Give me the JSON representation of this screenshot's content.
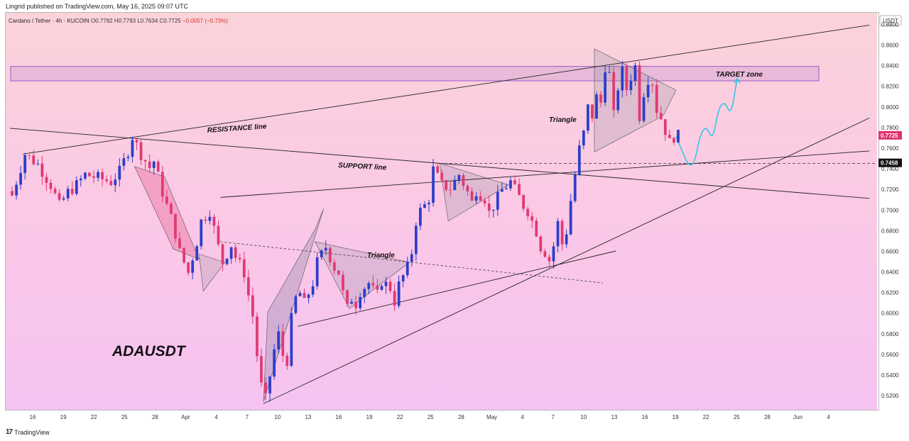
{
  "header": {
    "publisher": "Lingrid published on TradingView.com, May 16, 2025 09:07 UTC"
  },
  "symbol": {
    "line": "Cardano / Tether · 4h · KUCOIN",
    "open": "O0.7782",
    "high": "H0.7793",
    "low": "L0.7634",
    "close": "C0.7725",
    "change": "−0.0057 (−0.73%)",
    "ticker": "ADAUSDT",
    "currency": "USDT"
  },
  "footer": {
    "brand": "TradingView"
  },
  "colors": {
    "bull": "#2b3ec9",
    "bear": "#e03a72",
    "price_tag": "#e0336e",
    "level_tag": "#111111",
    "forecast": "#33c6e6",
    "target_zone": "#9b59c6"
  },
  "chart_data": {
    "type": "candlestick",
    "y_axis": {
      "ticks": [
        0.52,
        0.54,
        0.56,
        0.58,
        0.6,
        0.62,
        0.64,
        0.66,
        0.68,
        0.7,
        0.72,
        0.74,
        0.76,
        0.78,
        0.8,
        0.82,
        0.84,
        0.86,
        0.88
      ],
      "range": [
        0.507,
        0.892
      ]
    },
    "x_axis": {
      "ticks": [
        "16",
        "19",
        "22",
        "25",
        "28",
        "Apr",
        "4",
        "7",
        "10",
        "13",
        "16",
        "19",
        "22",
        "25",
        "28",
        "May",
        "4",
        "7",
        "10",
        "13",
        "16",
        "19",
        "22",
        "25",
        "28",
        "Jun",
        "4"
      ]
    },
    "last_price": "0.7725",
    "level_price": "0.7458",
    "annotations": [
      {
        "text": "RESISTANCE line"
      },
      {
        "text": "SUPPORT line"
      },
      {
        "text": "Triangle"
      },
      {
        "text": "Triangle"
      },
      {
        "text": "TARGET zone"
      }
    ],
    "target_zone": [
      0.826,
      0.84
    ],
    "price_path": [
      [
        0,
        0.715
      ],
      [
        3,
        0.755
      ],
      [
        6,
        0.745
      ],
      [
        9,
        0.725
      ],
      [
        11,
        0.705
      ],
      [
        13,
        0.718
      ],
      [
        15,
        0.725
      ],
      [
        17,
        0.735
      ],
      [
        20,
        0.732
      ],
      [
        23,
        0.728
      ],
      [
        25,
        0.738
      ],
      [
        27,
        0.758
      ],
      [
        28,
        0.772
      ],
      [
        30,
        0.755
      ],
      [
        32,
        0.742
      ],
      [
        33,
        0.748
      ],
      [
        35,
        0.718
      ],
      [
        36,
        0.705
      ],
      [
        37,
        0.693
      ],
      [
        38,
        0.678
      ],
      [
        39,
        0.66
      ],
      [
        40,
        0.65
      ],
      [
        41,
        0.64
      ],
      [
        43,
        0.67
      ],
      [
        44,
        0.69
      ],
      [
        46,
        0.7
      ],
      [
        48,
        0.665
      ],
      [
        49,
        0.65
      ],
      [
        51,
        0.667
      ],
      [
        52,
        0.655
      ],
      [
        53,
        0.648
      ],
      [
        54,
        0.64
      ],
      [
        55,
        0.618
      ],
      [
        56,
        0.598
      ],
      [
        57,
        0.56
      ],
      [
        58,
        0.53
      ],
      [
        59,
        0.517
      ],
      [
        60,
        0.54
      ],
      [
        61,
        0.565
      ],
      [
        62,
        0.58
      ],
      [
        63,
        0.56
      ],
      [
        64,
        0.555
      ],
      [
        65,
        0.595
      ],
      [
        66,
        0.615
      ],
      [
        67,
        0.62
      ],
      [
        68,
        0.61
      ],
      [
        70,
        0.63
      ],
      [
        71,
        0.65
      ],
      [
        73,
        0.665
      ],
      [
        75,
        0.645
      ],
      [
        76,
        0.64
      ],
      [
        77,
        0.62
      ],
      [
        78,
        0.605
      ],
      [
        79,
        0.615
      ],
      [
        80,
        0.61
      ],
      [
        81,
        0.622
      ],
      [
        83,
        0.63
      ],
      [
        84,
        0.623
      ],
      [
        85,
        0.618
      ],
      [
        86,
        0.632
      ],
      [
        88,
        0.625
      ],
      [
        89,
        0.612
      ],
      [
        90,
        0.628
      ],
      [
        92,
        0.645
      ],
      [
        93,
        0.66
      ],
      [
        94,
        0.69
      ],
      [
        95,
        0.7
      ],
      [
        96,
        0.705
      ],
      [
        97,
        0.712
      ],
      [
        98,
        0.74
      ],
      [
        100,
        0.725
      ],
      [
        102,
        0.722
      ],
      [
        104,
        0.735
      ],
      [
        106,
        0.718
      ],
      [
        107,
        0.708
      ],
      [
        108,
        0.72
      ],
      [
        110,
        0.712
      ],
      [
        111,
        0.698
      ],
      [
        112,
        0.705
      ],
      [
        114,
        0.72
      ],
      [
        116,
        0.728
      ],
      [
        118,
        0.713
      ],
      [
        119,
        0.705
      ],
      [
        120,
        0.7
      ],
      [
        121,
        0.69
      ],
      [
        122,
        0.68
      ],
      [
        123,
        0.665
      ],
      [
        124,
        0.66
      ],
      [
        125,
        0.652
      ],
      [
        126,
        0.666
      ],
      [
        127,
        0.688
      ],
      [
        128,
        0.668
      ],
      [
        129,
        0.68
      ],
      [
        130,
        0.71
      ],
      [
        131,
        0.735
      ],
      [
        132,
        0.76
      ],
      [
        133,
        0.775
      ],
      [
        134,
        0.8
      ],
      [
        135,
        0.792
      ],
      [
        136,
        0.81
      ],
      [
        137,
        0.805
      ],
      [
        138,
        0.84
      ],
      [
        139,
        0.832
      ],
      [
        140,
        0.792
      ],
      [
        141,
        0.82
      ],
      [
        142,
        0.835
      ],
      [
        143,
        0.818
      ],
      [
        144,
        0.83
      ],
      [
        145,
        0.84
      ],
      [
        146,
        0.792
      ],
      [
        147,
        0.815
      ],
      [
        148,
        0.828
      ],
      [
        149,
        0.825
      ],
      [
        150,
        0.798
      ],
      [
        151,
        0.79
      ],
      [
        152,
        0.778
      ],
      [
        153,
        0.766
      ],
      [
        154,
        0.772
      ],
      [
        155,
        0.7725
      ]
    ],
    "forecast_path": [
      [
        0,
        0.772
      ],
      [
        1,
        0.758
      ],
      [
        2,
        0.744
      ],
      [
        3,
        0.745
      ],
      [
        4,
        0.775
      ],
      [
        5,
        0.782
      ],
      [
        6,
        0.768
      ],
      [
        7,
        0.8
      ],
      [
        8,
        0.806
      ],
      [
        9,
        0.792
      ],
      [
        10,
        0.828
      ]
    ]
  }
}
